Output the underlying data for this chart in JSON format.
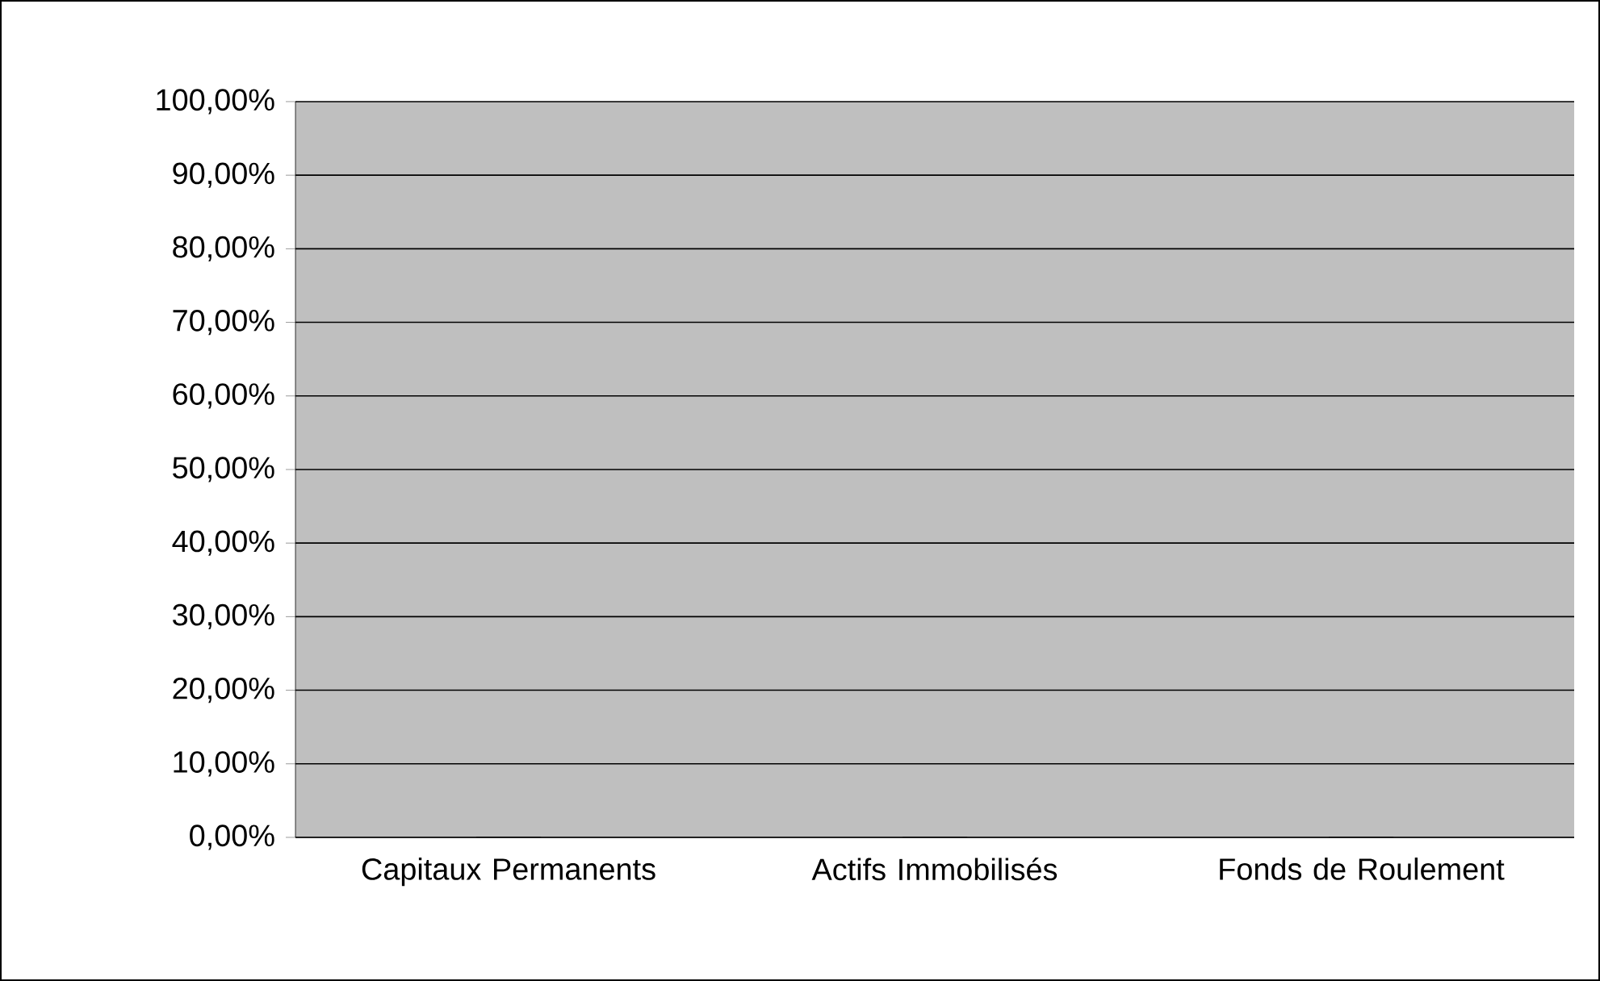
{
  "chart_data": {
    "type": "bar",
    "categories": [
      "Capitaux Permanents",
      "Actifs Immobilisés",
      "Fonds de Roulement"
    ],
    "values": [
      0,
      0,
      0
    ],
    "ylim": [
      0,
      100
    ],
    "yticks": [
      {
        "value": 0,
        "label": "0,00%"
      },
      {
        "value": 10,
        "label": "10,00%"
      },
      {
        "value": 20,
        "label": "20,00%"
      },
      {
        "value": 30,
        "label": "30,00%"
      },
      {
        "value": 40,
        "label": "40,00%"
      },
      {
        "value": 50,
        "label": "50,00%"
      },
      {
        "value": 60,
        "label": "60,00%"
      },
      {
        "value": 70,
        "label": "70,00%"
      },
      {
        "value": 80,
        "label": "80,00%"
      },
      {
        "value": 90,
        "label": "90,00%"
      },
      {
        "value": 100,
        "label": "100,00%"
      }
    ],
    "grid": "y"
  }
}
